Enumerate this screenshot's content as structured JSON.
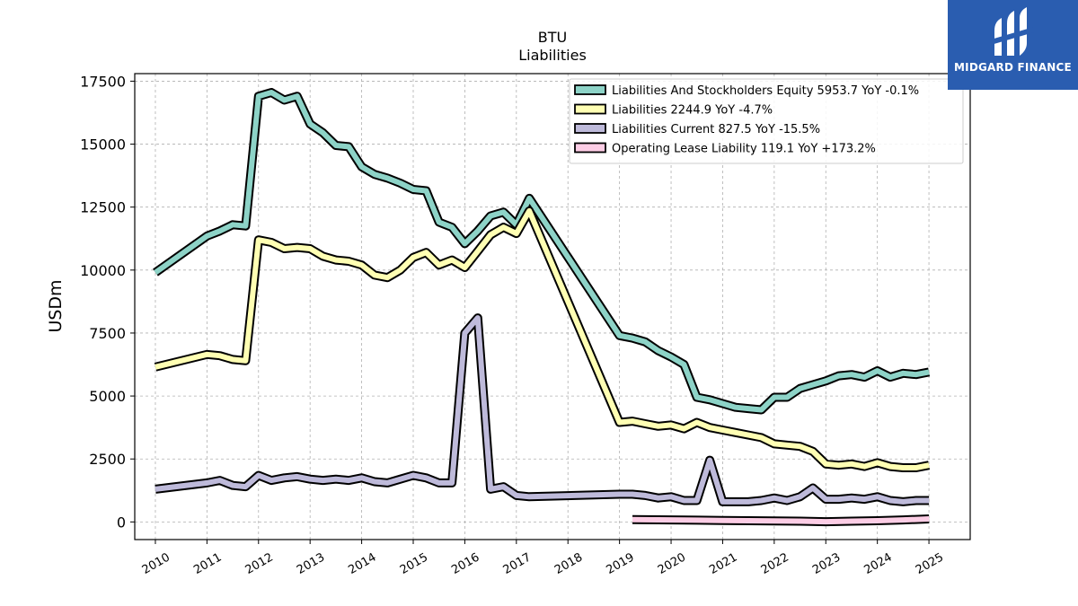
{
  "chart_data": {
    "type": "line",
    "title": "BTU",
    "subtitle": "Liabilities",
    "ylabel": "USDm",
    "xlabel": "",
    "xlim": [
      2009.6,
      2025.8
    ],
    "ylim": [
      -700,
      17800
    ],
    "yticks": [
      0,
      2500,
      5000,
      7500,
      10000,
      12500,
      15000,
      17500
    ],
    "ytick_labels": [
      "0",
      "2500",
      "5000",
      "7500",
      "10000",
      "12500",
      "15000",
      "17500"
    ],
    "xticks": [
      2010,
      2011,
      2012,
      2013,
      2014,
      2015,
      2016,
      2017,
      2018,
      2019,
      2020,
      2021,
      2022,
      2023,
      2024,
      2025
    ],
    "xtick_labels": [
      "2010",
      "2011",
      "2012",
      "2013",
      "2014",
      "2015",
      "2016",
      "2017",
      "2018",
      "2019",
      "2020",
      "2021",
      "2022",
      "2023",
      "2024",
      "2025"
    ],
    "grid": true,
    "legend_position": "top-right",
    "series": [
      {
        "name": "Liabilities And Stockholders Equity",
        "legend_label": "Liabilities And Stockholders Equity  5953.7 YoY -0.1%",
        "color": "#8dd3c7",
        "x": [
          2010.0,
          2011.0,
          2011.25,
          2011.5,
          2011.75,
          2012.0,
          2012.25,
          2012.5,
          2012.75,
          2013.0,
          2013.25,
          2013.5,
          2013.75,
          2014.0,
          2014.25,
          2014.5,
          2014.75,
          2015.0,
          2015.25,
          2015.5,
          2015.75,
          2016.0,
          2016.25,
          2016.5,
          2016.75,
          2017.0,
          2017.25,
          2019.0,
          2019.25,
          2019.5,
          2019.75,
          2020.0,
          2020.25,
          2020.5,
          2020.75,
          2021.0,
          2021.25,
          2021.5,
          2021.75,
          2022.0,
          2022.25,
          2022.5,
          2022.75,
          2023.0,
          2023.25,
          2023.5,
          2023.75,
          2024.0,
          2024.25,
          2024.5,
          2024.75,
          2025.0
        ],
        "y": [
          9900,
          11350,
          11550,
          11800,
          11750,
          16900,
          17050,
          16750,
          16900,
          15800,
          15450,
          14950,
          14900,
          14100,
          13800,
          13650,
          13450,
          13200,
          13150,
          11900,
          11700,
          11050,
          11550,
          12150,
          12300,
          11800,
          12850,
          7400,
          7300,
          7150,
          6800,
          6550,
          6250,
          4950,
          4850,
          4700,
          4550,
          4500,
          4450,
          4950,
          4950,
          5300,
          5450,
          5600,
          5800,
          5850,
          5750,
          6000,
          5750,
          5900,
          5850,
          5950
        ]
      },
      {
        "name": "Liabilities",
        "legend_label": "Liabilities  2244.9 YoY -4.7%",
        "color": "#ffffb3",
        "x": [
          2010.0,
          2011.0,
          2011.25,
          2011.5,
          2011.75,
          2012.0,
          2012.25,
          2012.5,
          2012.75,
          2013.0,
          2013.25,
          2013.5,
          2013.75,
          2014.0,
          2014.25,
          2014.5,
          2014.75,
          2015.0,
          2015.25,
          2015.5,
          2015.75,
          2016.0,
          2016.25,
          2016.5,
          2016.75,
          2017.0,
          2017.25,
          2019.0,
          2019.25,
          2019.5,
          2019.75,
          2020.0,
          2020.25,
          2020.5,
          2020.75,
          2021.0,
          2021.25,
          2021.5,
          2021.75,
          2022.0,
          2022.25,
          2022.5,
          2022.75,
          2023.0,
          2023.25,
          2023.5,
          2023.75,
          2024.0,
          2024.25,
          2024.5,
          2024.75,
          2025.0
        ],
        "y": [
          6150,
          6650,
          6600,
          6450,
          6400,
          11200,
          11100,
          10850,
          10900,
          10850,
          10550,
          10400,
          10350,
          10200,
          9800,
          9700,
          10000,
          10500,
          10700,
          10200,
          10400,
          10100,
          10750,
          11400,
          11700,
          11450,
          12350,
          3950,
          4000,
          3900,
          3800,
          3850,
          3700,
          3950,
          3750,
          3650,
          3550,
          3450,
          3350,
          3100,
          3050,
          3000,
          2800,
          2300,
          2250,
          2300,
          2200,
          2350,
          2200,
          2150,
          2150,
          2250
        ]
      },
      {
        "name": "Liabilities Current",
        "legend_label": "Liabilities Current  827.5 YoY -15.5%",
        "color": "#bebada",
        "x": [
          2010.0,
          2011.0,
          2011.25,
          2011.5,
          2011.75,
          2012.0,
          2012.25,
          2012.5,
          2012.75,
          2013.0,
          2013.25,
          2013.5,
          2013.75,
          2014.0,
          2014.25,
          2014.5,
          2014.75,
          2015.0,
          2015.25,
          2015.5,
          2015.75,
          2016.0,
          2016.25,
          2016.5,
          2016.75,
          2017.0,
          2017.25,
          2019.0,
          2019.25,
          2019.5,
          2019.75,
          2020.0,
          2020.25,
          2020.5,
          2020.75,
          2021.0,
          2021.25,
          2021.5,
          2021.75,
          2022.0,
          2022.25,
          2022.5,
          2022.75,
          2023.0,
          2023.25,
          2023.5,
          2023.75,
          2024.0,
          2024.25,
          2024.5,
          2024.75,
          2025.0
        ],
        "y": [
          1300,
          1550,
          1650,
          1450,
          1400,
          1850,
          1650,
          1750,
          1800,
          1700,
          1650,
          1700,
          1650,
          1750,
          1600,
          1550,
          1700,
          1850,
          1750,
          1550,
          1550,
          7500,
          8100,
          1300,
          1400,
          1050,
          1000,
          1100,
          1100,
          1050,
          950,
          1000,
          850,
          850,
          2450,
          800,
          800,
          800,
          850,
          950,
          850,
          1000,
          1350,
          900,
          900,
          950,
          900,
          1000,
          850,
          800,
          850,
          850
        ]
      },
      {
        "name": "Operating Lease Liability",
        "legend_label": "Operating Lease Liability  119.1 YoY +173.2%",
        "color": "#fccde5",
        "x": [
          2019.25,
          2020.0,
          2020.5,
          2021.0,
          2021.5,
          2022.0,
          2022.5,
          2023.0,
          2023.5,
          2024.0,
          2024.5,
          2025.0
        ],
        "y": [
          90,
          80,
          70,
          60,
          50,
          40,
          30,
          10,
          30,
          50,
          80,
          120
        ]
      }
    ]
  },
  "logo": {
    "text": "MIDGARD FINANCE",
    "color": "#2a5db0"
  }
}
